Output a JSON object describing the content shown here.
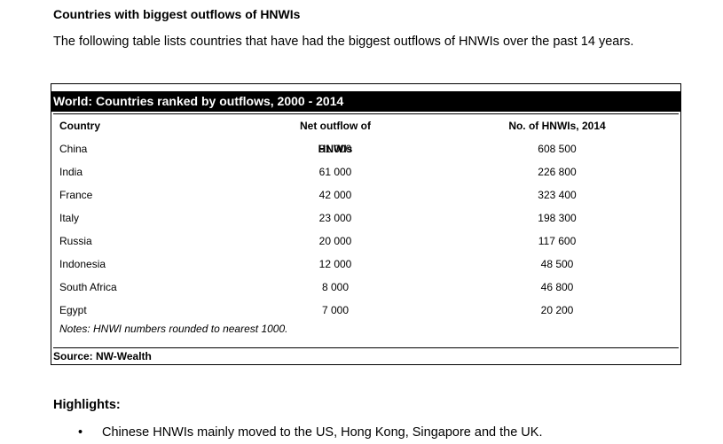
{
  "section_heading": "Countries with biggest outflows of HNWIs",
  "intro_text": "The following table lists countries that have had the biggest outflows of HNWIs over the past 14 years.",
  "table": {
    "title": "World: Countries ranked by outflows, 2000 - 2014",
    "columns": [
      "Country",
      "Net outflow of HNWIs",
      "No. of HNWIs, 2014"
    ],
    "rows": [
      {
        "country": "China",
        "outflow": "91 000",
        "hnwis": "608 500"
      },
      {
        "country": "India",
        "outflow": "61 000",
        "hnwis": "226 800"
      },
      {
        "country": "France",
        "outflow": "42 000",
        "hnwis": "323 400"
      },
      {
        "country": "Italy",
        "outflow": "23 000",
        "hnwis": "198 300"
      },
      {
        "country": "Russia",
        "outflow": "20 000",
        "hnwis": "117 600"
      },
      {
        "country": "Indonesia",
        "outflow": "12 000",
        "hnwis": "48 500"
      },
      {
        "country": "South Africa",
        "outflow": "8 000",
        "hnwis": "46 800"
      },
      {
        "country": "Egypt",
        "outflow": "7 000",
        "hnwis": "20 200"
      }
    ],
    "notes": "Notes: HNWI numbers rounded to nearest 1000.",
    "source": "Source: NW-Wealth"
  },
  "highlights": {
    "heading": "Highlights:",
    "bullet_symbol": "•",
    "items": [
      "Chinese HNWIs mainly moved to the US, Hong Kong, Singapore and the UK."
    ]
  }
}
